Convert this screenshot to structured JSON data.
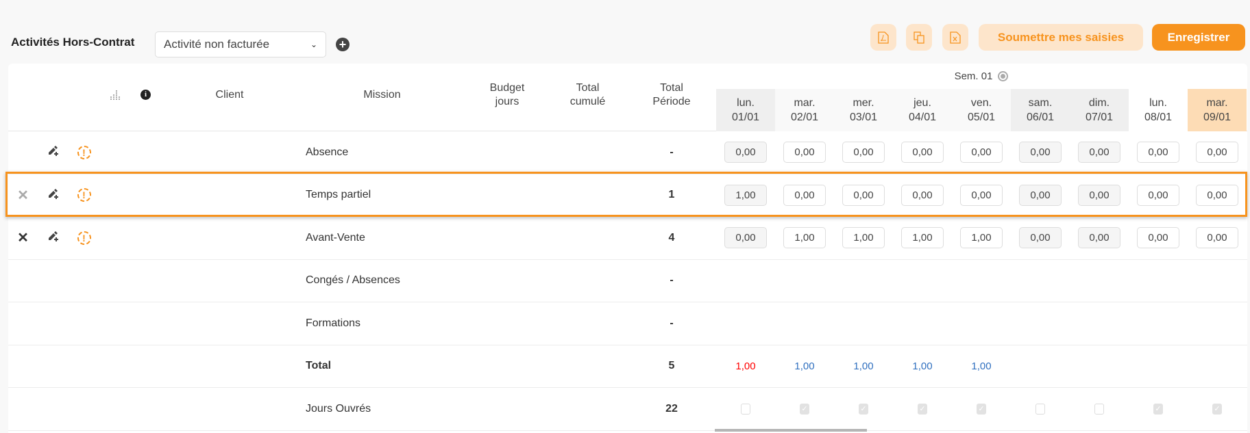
{
  "toolbar": {
    "title": "Activités Hors-Contrat",
    "select_value": "Activité non facturée",
    "add_icon": "plus-circle-icon",
    "submit_label": "Soumettre mes saisies",
    "save_label": "Enregistrer",
    "accent": "#f7931e"
  },
  "table": {
    "headers": {
      "client": "Client",
      "mission": "Mission",
      "budget": "Budget jours",
      "cumul": "Total cumulé",
      "periode": "Total Période"
    },
    "week_label": "Sem. 01",
    "days": [
      {
        "name": "lun.",
        "date": "01/01",
        "bg": "#efefef"
      },
      {
        "name": "mar.",
        "date": "02/01",
        "bg": "#f9f9f9"
      },
      {
        "name": "mer.",
        "date": "03/01",
        "bg": "#f9f9f9"
      },
      {
        "name": "jeu.",
        "date": "04/01",
        "bg": "#f9f9f9"
      },
      {
        "name": "ven.",
        "date": "05/01",
        "bg": "#f9f9f9"
      },
      {
        "name": "sam.",
        "date": "06/01",
        "bg": "#efefef"
      },
      {
        "name": "dim.",
        "date": "07/01",
        "bg": "#efefef"
      },
      {
        "name": "lun.",
        "date": "08/01",
        "bg": "#ffffff"
      },
      {
        "name": "mar.",
        "date": "09/01",
        "bg": "#fddcb5"
      }
    ],
    "rows": [
      {
        "mission": "Absence",
        "total": "-",
        "delete": false,
        "edit": true,
        "values": [
          "0,00",
          "0,00",
          "0,00",
          "0,00",
          "0,00",
          "0,00",
          "0,00",
          "0,00",
          "0,00"
        ]
      },
      {
        "mission": "Temps partiel",
        "total": "1",
        "delete": "light",
        "edit": true,
        "highlighted": true,
        "values": [
          "1,00",
          "0,00",
          "0,00",
          "0,00",
          "0,00",
          "0,00",
          "0,00",
          "0,00",
          "0,00"
        ]
      },
      {
        "mission": "Avant-Vente",
        "total": "4",
        "delete": "dark",
        "edit": true,
        "values": [
          "0,00",
          "1,00",
          "1,00",
          "1,00",
          "1,00",
          "0,00",
          "0,00",
          "0,00",
          "0,00"
        ]
      },
      {
        "mission": "Congés / Absences",
        "total": "-"
      },
      {
        "mission": "Formations",
        "total": "-"
      }
    ],
    "total_row": {
      "label": "Total",
      "total": "5",
      "values": [
        "1,00",
        "1,00",
        "1,00",
        "1,00",
        "1,00"
      ],
      "colors": [
        "#ff0000",
        "#2f6fbf",
        "#2f6fbf",
        "#2f6fbf",
        "#2f6fbf"
      ]
    },
    "jours_row": {
      "label": "Jours Ouvrés",
      "total": "22",
      "checked": [
        false,
        true,
        true,
        true,
        true,
        false,
        false,
        true,
        true
      ]
    }
  }
}
